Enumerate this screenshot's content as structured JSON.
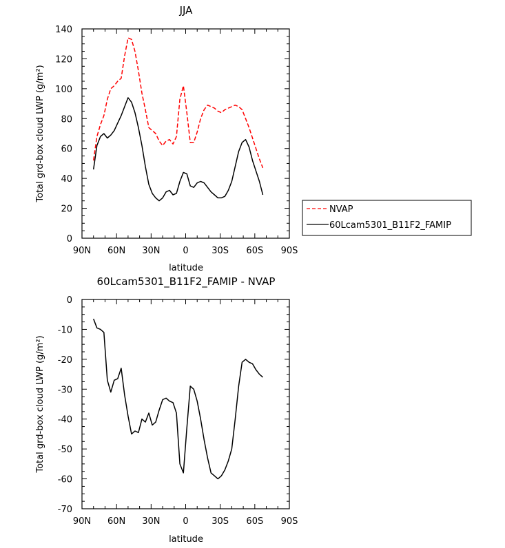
{
  "chart_data": [
    {
      "type": "line",
      "title": "JJA",
      "xlabel": "latitude",
      "ylabel": "Total grd-box cloud LWP (g/m²)",
      "x_ticks": [
        "90N",
        "60N",
        "30N",
        "0",
        "30S",
        "60S",
        "90S"
      ],
      "x_tick_values": [
        90,
        60,
        30,
        0,
        -30,
        -60,
        -90
      ],
      "xlim": [
        90,
        -90
      ],
      "ylim": [
        0,
        140
      ],
      "y_ticks": [
        0,
        20,
        40,
        60,
        80,
        100,
        120,
        140
      ],
      "legend": {
        "placement": "right, outside plot"
      },
      "series": [
        {
          "name": "NVAP",
          "color": "#ff0000",
          "style": "dashed",
          "x": [
            80,
            77,
            74,
            71,
            68,
            65,
            62,
            59,
            56,
            53,
            50,
            47,
            44,
            41,
            38,
            35,
            32,
            29,
            26,
            23,
            20,
            17,
            14,
            11,
            8,
            5,
            2,
            -1,
            -4,
            -7,
            -10,
            -13,
            -16,
            -19,
            -22,
            -25,
            -28,
            -31,
            -34,
            -37,
            -40,
            -43,
            -46,
            -49,
            -52,
            -55,
            -58,
            -61,
            -64,
            -67
          ],
          "y": [
            52,
            68,
            76,
            82,
            93,
            100,
            102,
            105,
            107,
            122,
            134,
            133,
            125,
            112,
            97,
            86,
            74,
            72,
            70,
            65,
            62,
            65,
            66,
            63,
            68,
            93,
            102,
            84,
            64,
            64,
            71,
            80,
            86,
            89,
            88,
            87,
            85,
            84,
            86,
            87,
            88,
            89,
            88,
            86,
            80,
            74,
            67,
            60,
            53,
            47
          ]
        },
        {
          "name": "60Lcam5301_B11F2_FAMIP",
          "color": "#000000",
          "style": "solid",
          "x": [
            80,
            77,
            74,
            71,
            68,
            65,
            62,
            59,
            56,
            53,
            50,
            47,
            44,
            41,
            38,
            35,
            32,
            29,
            26,
            23,
            20,
            17,
            14,
            11,
            8,
            5,
            2,
            -1,
            -4,
            -7,
            -10,
            -13,
            -16,
            -19,
            -22,
            -25,
            -28,
            -31,
            -34,
            -37,
            -40,
            -43,
            -46,
            -49,
            -52,
            -55,
            -58,
            -61,
            -64,
            -67
          ],
          "y": [
            46,
            62,
            68,
            70,
            67,
            69,
            72,
            77,
            82,
            88,
            94,
            91,
            84,
            74,
            62,
            48,
            36,
            30,
            27,
            25,
            27,
            31,
            32,
            29,
            30,
            38,
            44,
            43,
            35,
            34,
            37,
            38,
            37,
            34,
            31,
            29,
            27,
            27,
            28,
            32,
            38,
            48,
            58,
            64,
            66,
            61,
            52,
            45,
            38,
            29
          ]
        }
      ]
    },
    {
      "type": "line",
      "title": "60Lcam5301_B11F2_FAMIP - NVAP",
      "xlabel": "latitude",
      "ylabel": "Total grd-box cloud LWP (g/m²)",
      "x_ticks": [
        "90N",
        "60N",
        "30N",
        "0",
        "30S",
        "60S",
        "90S"
      ],
      "x_tick_values": [
        90,
        60,
        30,
        0,
        -30,
        -60,
        -90
      ],
      "xlim": [
        90,
        -90
      ],
      "ylim": [
        -70,
        0
      ],
      "y_ticks": [
        -70,
        -60,
        -50,
        -40,
        -30,
        -20,
        -10,
        0
      ],
      "series": [
        {
          "color": "#000000",
          "style": "solid",
          "x": [
            80,
            77,
            74,
            71,
            68,
            65,
            62,
            59,
            56,
            53,
            50,
            47,
            44,
            41,
            38,
            35,
            32,
            29,
            26,
            23,
            20,
            17,
            14,
            11,
            8,
            5,
            2,
            -1,
            -4,
            -7,
            -10,
            -13,
            -16,
            -19,
            -22,
            -25,
            -28,
            -31,
            -34,
            -37,
            -40,
            -43,
            -46,
            -49,
            -52,
            -55,
            -58,
            -61,
            -64,
            -67
          ],
          "y": [
            -6.5,
            -9.5,
            -10,
            -11,
            -27,
            -31,
            -27,
            -26.5,
            -23,
            -32,
            -39,
            -45,
            -44,
            -44.5,
            -40,
            -41,
            -38,
            -42,
            -41,
            -37,
            -33.5,
            -33,
            -34,
            -34.5,
            -38,
            -55,
            -58,
            -43,
            -29,
            -30,
            -34,
            -40,
            -47,
            -53,
            -58,
            -59,
            -60,
            -59,
            -57,
            -54,
            -50,
            -40,
            -29,
            -21,
            -20,
            -21,
            -21.5,
            -23.5,
            -25,
            -26
          ]
        }
      ]
    }
  ]
}
